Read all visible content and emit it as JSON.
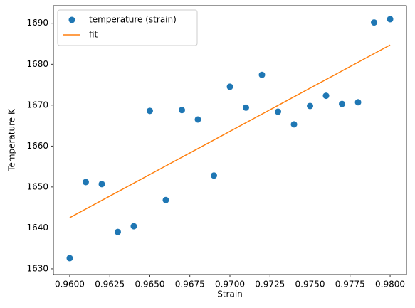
{
  "chart_data": {
    "type": "scatter",
    "xlabel": "Strain",
    "ylabel": "Temperature K",
    "xlim": [
      0.95898,
      0.98102
    ],
    "ylim": [
      1628.6,
      1694.3
    ],
    "xticks": [
      {
        "value": 0.96,
        "label": "0.9600"
      },
      {
        "value": 0.9625,
        "label": "0.9625"
      },
      {
        "value": 0.965,
        "label": "0.9650"
      },
      {
        "value": 0.9675,
        "label": "0.9675"
      },
      {
        "value": 0.97,
        "label": "0.9700"
      },
      {
        "value": 0.9725,
        "label": "0.9725"
      },
      {
        "value": 0.975,
        "label": "0.9750"
      },
      {
        "value": 0.9775,
        "label": "0.9775"
      },
      {
        "value": 0.98,
        "label": "0.9800"
      }
    ],
    "yticks": [
      1630,
      1640,
      1650,
      1660,
      1670,
      1680,
      1690
    ],
    "legend": "upper left",
    "series": [
      {
        "name": "temperature (strain)",
        "type": "scatter",
        "color": "#1f77b4",
        "x": [
          0.96,
          0.961,
          0.962,
          0.963,
          0.964,
          0.965,
          0.966,
          0.967,
          0.968,
          0.969,
          0.97,
          0.971,
          0.972,
          0.973,
          0.974,
          0.975,
          0.976,
          0.977,
          0.978,
          0.979,
          0.98
        ],
        "values": [
          1632.6,
          1651.2,
          1650.7,
          1639.0,
          1640.4,
          1668.6,
          1646.8,
          1668.8,
          1666.5,
          1652.8,
          1674.5,
          1669.4,
          1677.4,
          1668.4,
          1665.3,
          1669.8,
          1672.3,
          1670.3,
          1670.7,
          1690.2,
          1691.0
        ]
      },
      {
        "name": "fit",
        "type": "line",
        "color": "#ff7f0e",
        "x": [
          0.96,
          0.98
        ],
        "values": [
          1642.5,
          1684.7
        ]
      }
    ]
  }
}
